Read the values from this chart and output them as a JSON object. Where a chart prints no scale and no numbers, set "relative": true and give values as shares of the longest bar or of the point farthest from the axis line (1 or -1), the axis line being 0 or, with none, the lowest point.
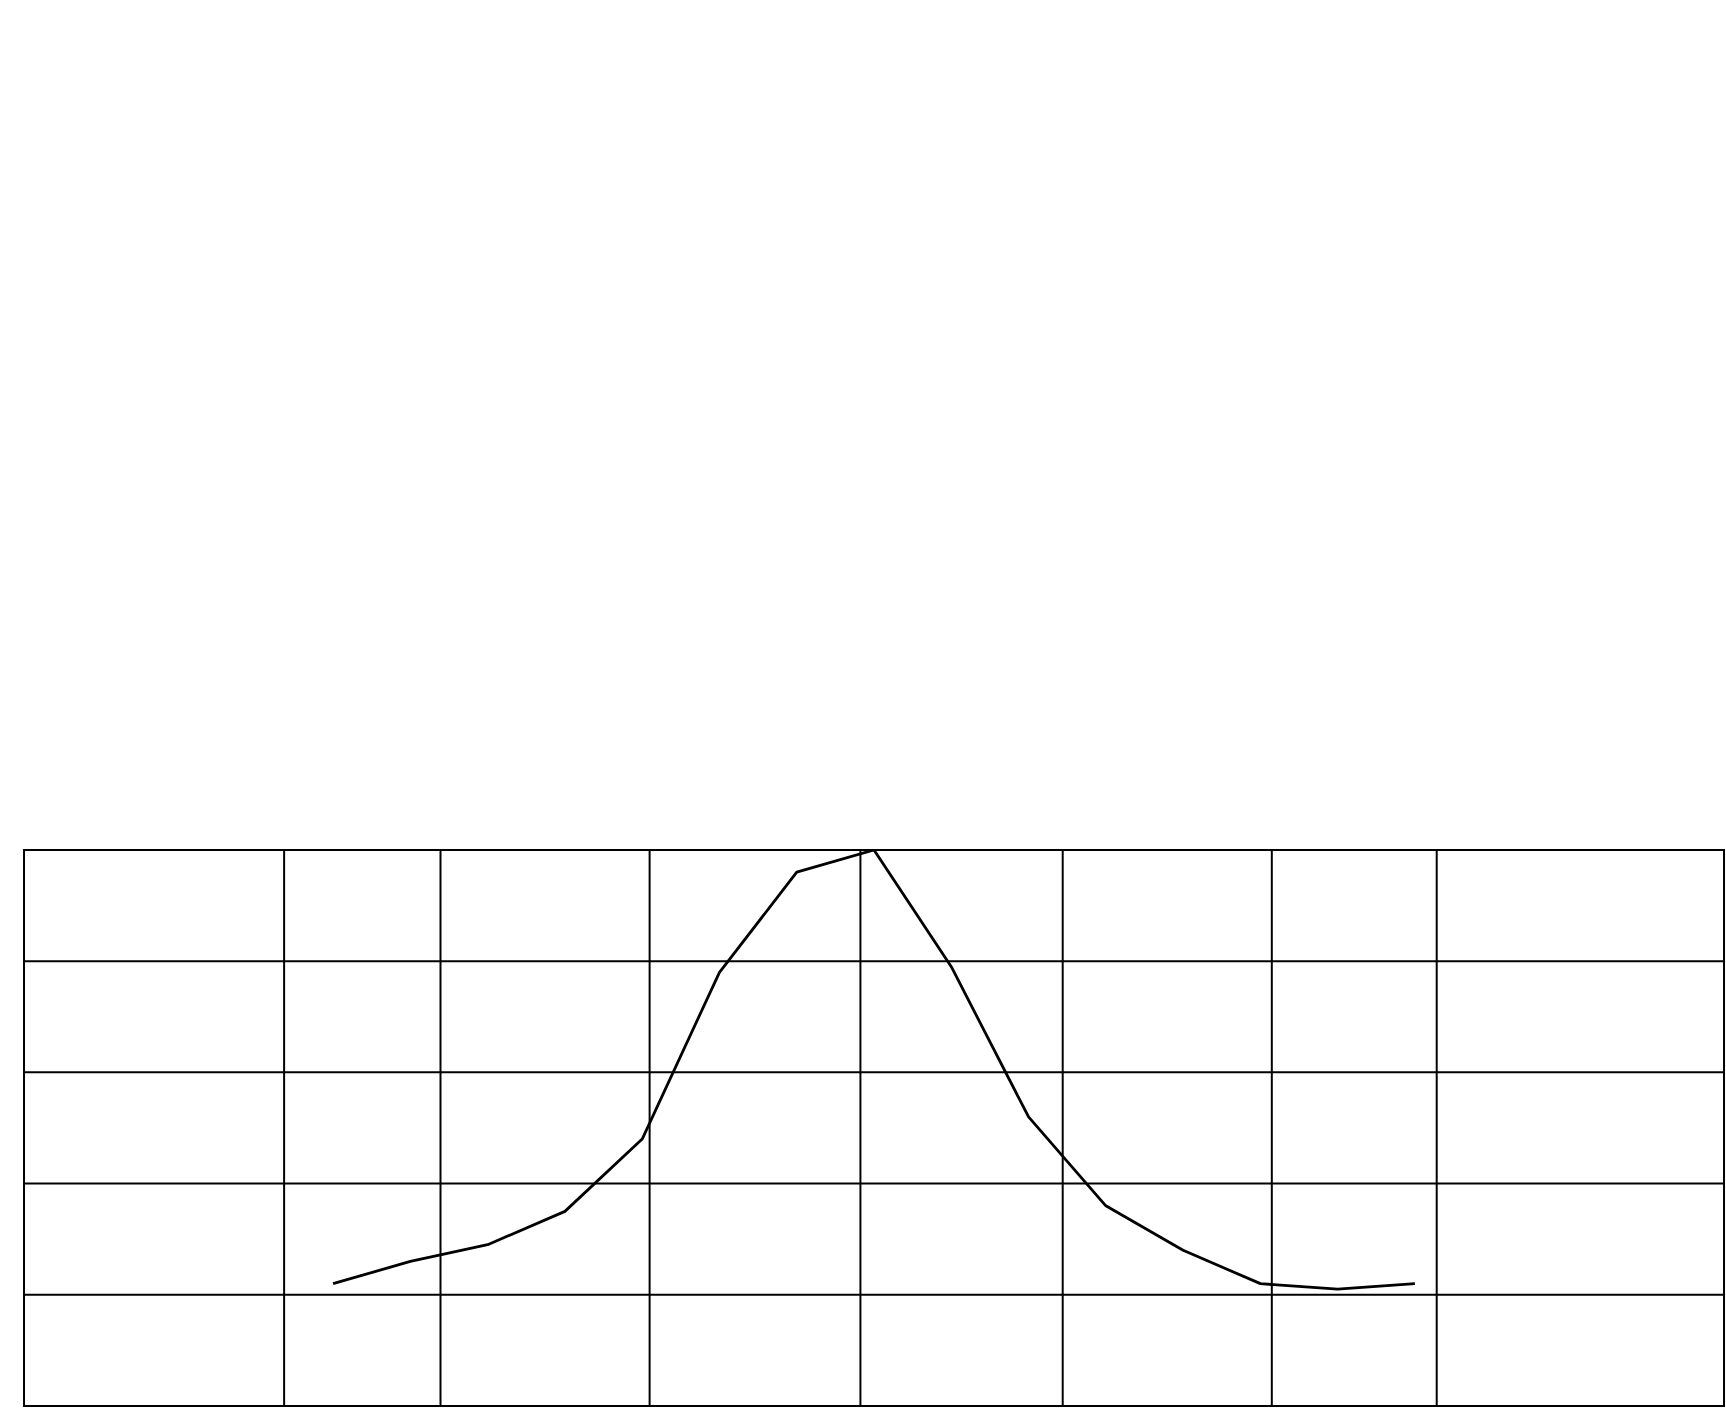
{
  "chart_data": {
    "type": "line",
    "relative": true,
    "grid": true,
    "marker": "none",
    "line_style": "solid",
    "categories": [
      null,
      null,
      null,
      null,
      null,
      null,
      null,
      null,
      null,
      null,
      null,
      null,
      null,
      null,
      null
    ],
    "series": [
      {
        "color": "#000000",
        "values": [
          0.22,
          0.26,
          0.29,
          0.35,
          0.48,
          0.78,
          0.96,
          1.0,
          0.79,
          0.52,
          0.36,
          0.28,
          0.22,
          0.21,
          0.22
        ]
      }
    ]
  }
}
